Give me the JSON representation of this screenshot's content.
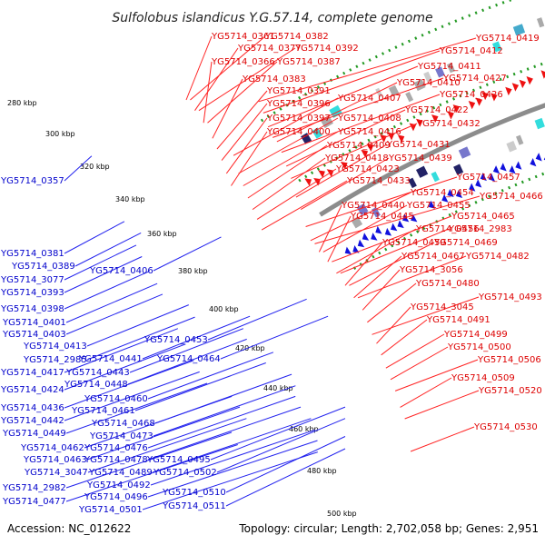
{
  "title": "Sulfolobus islandicus Y.G.57.14, complete genome",
  "footer": {
    "accession": "Accession: NC_012622",
    "topology": "Topology: circular; Length: 2,702,058 bp; Genes: 2,951"
  },
  "ticks": [
    "280 kbp",
    "300 kbp",
    "320 kbp",
    "340 kbp",
    "360 kbp",
    "380 kbp",
    "400 kbp",
    "420 kbp",
    "440 kbp",
    "460 kbp",
    "480 kbp",
    "500 kbp"
  ],
  "red_labels": [
    "YG5714_0361",
    "YG5714_0382",
    "YG5714_0377",
    "YG5714_0392",
    "YG5714_0366",
    "YG5714_0387",
    "YG5714_0383",
    "YG5714_0391",
    "YG5714_0396",
    "YG5714_0397",
    "YG5714_0400",
    "YG5714_0407",
    "YG5714_0408",
    "YG5714_0416",
    "YG5714_0409",
    "YG5714_0418",
    "YG5714_0423",
    "YG5714_0433",
    "YG5714_0419",
    "YG5714_0412",
    "YG5714_0411",
    "YG5714_0427",
    "YG5714_0410",
    "YG5714_0426",
    "YG5714_0422",
    "YG5714_0432",
    "YG5714_0431",
    "YG5714_0439",
    "YG5714_0457",
    "YG5714_0454",
    "YG5714_0466",
    "YG5714_0440",
    "YG5714_0455",
    "YG5714_0445",
    "YG5714_0465",
    "YG5714_0456",
    "YG5714_2983",
    "YG5714_0459",
    "YG5714_0469",
    "YG5714_0467",
    "YG5714_0482",
    "YG5714_3056",
    "YG5714_0480",
    "YG5714_0493",
    "YG5714_3045",
    "YG5714_0491",
    "YG5714_0499",
    "YG5714_0500",
    "YG5714_0506",
    "YG5714_0509",
    "YG5714_0520",
    "YG5714_0530"
  ],
  "blue_labels": [
    "YG5714_0357",
    "YG5714_0381",
    "YG5714_0389",
    "YG5714_3077",
    "YG5714_0406",
    "YG5714_0393",
    "YG5714_0398",
    "YG5714_0401",
    "YG5714_0403",
    "YG5714_0453",
    "YG5714_0413",
    "YG5714_2985",
    "YG5714_0441",
    "YG5714_0464",
    "YG5714_0417",
    "YG5714_0443",
    "YG5714_0448",
    "YG5714_0424",
    "YG5714_0460",
    "YG5714_0436",
    "YG5714_0461",
    "YG5714_0442",
    "YG5714_0468",
    "YG5714_0449",
    "YG5714_0473",
    "YG5714_0462",
    "YG5714_0476",
    "YG5714_0463",
    "YG5714_0478",
    "YG5714_0495",
    "YG5714_3047",
    "YG5714_0489",
    "YG5714_0502",
    "YG5714_2982",
    "YG5714_0492",
    "YG5714_0510",
    "YG5714_0477",
    "YG5714_0496",
    "YG5714_0501",
    "YG5714_0511"
  ],
  "colors": {
    "forward_strand": "#ee1111",
    "reverse_strand": "#1111dd",
    "backbone": "#8c8c8c",
    "boundary": "#229922",
    "cyan_feature": "#33dddd",
    "red_label": "#dd0000",
    "blue_label": "#0000cc"
  }
}
